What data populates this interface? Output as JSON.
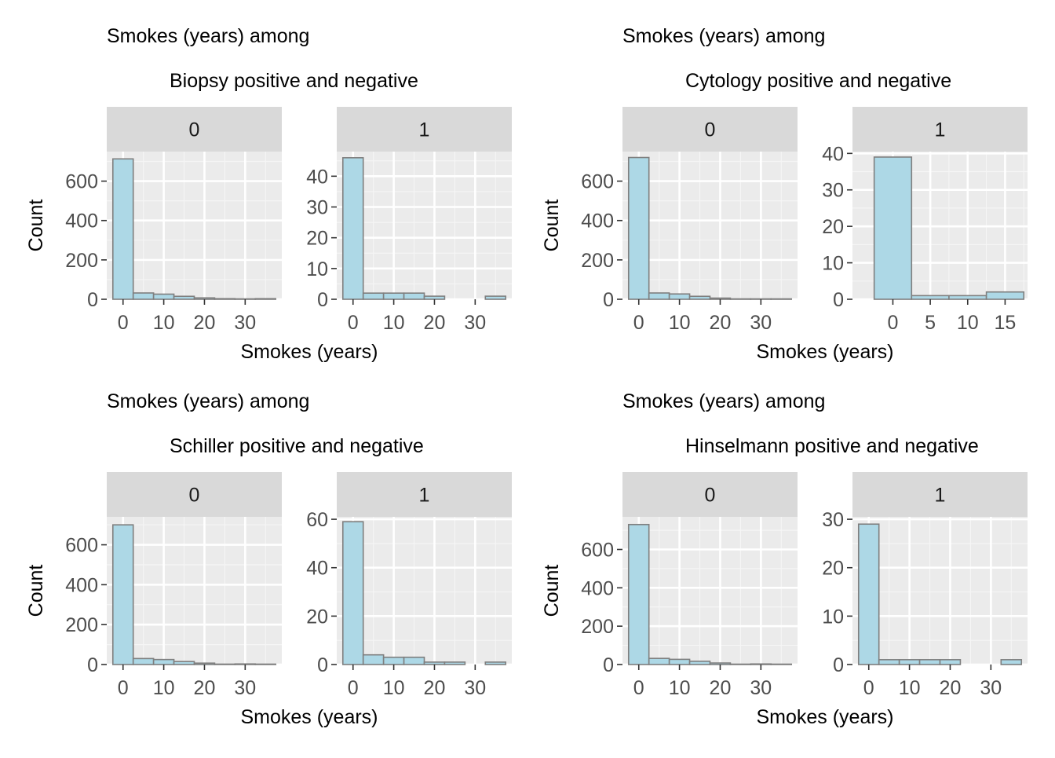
{
  "chart_data": [
    {
      "type": "bar",
      "title": "Smokes (years) among",
      "subtitle": "Biopsy positive and negative",
      "xlabel": "Smokes (years)",
      "ylabel": "Count",
      "bin_width": 5,
      "bin_centers": [
        0,
        5,
        10,
        15,
        20,
        25,
        30,
        35
      ],
      "colors": {
        "fill": "#add8e6",
        "stroke": "#7f7f7f"
      },
      "facets": [
        {
          "label": "0",
          "xlim": [
            -4,
            39
          ],
          "ylim": [
            0,
            750
          ],
          "x_ticks": [
            0,
            10,
            20,
            30
          ],
          "y_ticks": [
            0,
            200,
            400,
            600
          ],
          "x_tick_labels": [
            "0",
            "10",
            "20",
            "30"
          ],
          "y_tick_labels": [
            "0",
            "200",
            "400",
            "600"
          ],
          "values": [
            713,
            32,
            26,
            15,
            7,
            3,
            2,
            3
          ]
        },
        {
          "label": "1",
          "xlim": [
            -4,
            39
          ],
          "ylim": [
            0,
            48
          ],
          "x_ticks": [
            0,
            10,
            20,
            30
          ],
          "y_ticks": [
            0,
            10,
            20,
            30,
            40
          ],
          "x_tick_labels": [
            "0",
            "10",
            "20",
            "30"
          ],
          "y_tick_labels": [
            "0",
            "10",
            "20",
            "30",
            "40"
          ],
          "values": [
            46,
            2,
            2,
            2,
            1,
            0,
            0,
            1
          ]
        }
      ]
    },
    {
      "type": "bar",
      "title": "Smokes (years) among",
      "subtitle": "Cytology positive and negative",
      "xlabel": "Smokes (years)",
      "ylabel": "Count",
      "colors": {
        "fill": "#add8e6",
        "stroke": "#7f7f7f"
      },
      "facets": [
        {
          "label": "0",
          "xlim": [
            -4,
            39
          ],
          "ylim": [
            0,
            750
          ],
          "bin_width": 5,
          "bin_centers": [
            0,
            5,
            10,
            15,
            20,
            25,
            30,
            35
          ],
          "x_ticks": [
            0,
            10,
            20,
            30
          ],
          "y_ticks": [
            0,
            200,
            400,
            600
          ],
          "x_tick_labels": [
            "0",
            "10",
            "20",
            "30"
          ],
          "y_tick_labels": [
            "0",
            "200",
            "400",
            "600"
          ],
          "values": [
            720,
            32,
            27,
            15,
            6,
            2,
            2,
            2
          ]
        },
        {
          "label": "1",
          "xlim": [
            -5.4,
            18
          ],
          "ylim": [
            0,
            40.5
          ],
          "bin_width": 5,
          "bin_centers": [
            0,
            5,
            10,
            15
          ],
          "x_ticks": [
            0,
            5,
            10,
            15
          ],
          "y_ticks": [
            0,
            10,
            20,
            30,
            40
          ],
          "x_tick_labels": [
            "0",
            "5",
            "10",
            "15"
          ],
          "y_tick_labels": [
            "0",
            "10",
            "20",
            "30",
            "40"
          ],
          "values": [
            39,
            1,
            1,
            2
          ]
        }
      ]
    },
    {
      "type": "bar",
      "title": "Smokes (years) among",
      "subtitle": "Schiller positive and negative",
      "xlabel": "Smokes (years)",
      "ylabel": "Count",
      "bin_width": 5,
      "bin_centers": [
        0,
        5,
        10,
        15,
        20,
        25,
        30,
        35
      ],
      "colors": {
        "fill": "#add8e6",
        "stroke": "#7f7f7f"
      },
      "facets": [
        {
          "label": "0",
          "xlim": [
            -4,
            39
          ],
          "ylim": [
            0,
            740
          ],
          "x_ticks": [
            0,
            10,
            20,
            30
          ],
          "y_ticks": [
            0,
            200,
            400,
            600
          ],
          "x_tick_labels": [
            "0",
            "10",
            "20",
            "30"
          ],
          "y_tick_labels": [
            "0",
            "200",
            "400",
            "600"
          ],
          "values": [
            700,
            30,
            25,
            15,
            7,
            2,
            3,
            2
          ]
        },
        {
          "label": "1",
          "xlim": [
            -4,
            39
          ],
          "ylim": [
            0,
            61
          ],
          "x_ticks": [
            0,
            10,
            20,
            30
          ],
          "y_ticks": [
            0,
            20,
            40,
            60
          ],
          "x_tick_labels": [
            "0",
            "10",
            "20",
            "30"
          ],
          "y_tick_labels": [
            "0",
            "20",
            "40",
            "60"
          ],
          "values": [
            59,
            4,
            3,
            3,
            1,
            1,
            0,
            1
          ]
        }
      ]
    },
    {
      "type": "bar",
      "title": "Smokes (years) among",
      "subtitle": "Hinselmann positive and negative",
      "xlabel": "Smokes (years)",
      "ylabel": "Count",
      "bin_width": 5,
      "bin_centers": [
        0,
        5,
        10,
        15,
        20,
        25,
        30,
        35
      ],
      "colors": {
        "fill": "#add8e6",
        "stroke": "#7f7f7f"
      },
      "facets": [
        {
          "label": "0",
          "xlim": [
            -4,
            39
          ],
          "ylim": [
            0,
            770
          ],
          "x_ticks": [
            0,
            10,
            20,
            30
          ],
          "y_ticks": [
            0,
            200,
            400,
            600
          ],
          "x_tick_labels": [
            "0",
            "10",
            "20",
            "30"
          ],
          "y_tick_labels": [
            "0",
            "200",
            "400",
            "600"
          ],
          "values": [
            730,
            32,
            27,
            17,
            8,
            2,
            3,
            2
          ]
        },
        {
          "label": "1",
          "xlim": [
            -4,
            39
          ],
          "ylim": [
            0,
            30.5
          ],
          "x_ticks": [
            0,
            10,
            20,
            30
          ],
          "y_ticks": [
            0,
            10,
            20,
            30
          ],
          "x_tick_labels": [
            "0",
            "10",
            "20",
            "30"
          ],
          "y_tick_labels": [
            "0",
            "10",
            "20",
            "30"
          ],
          "values": [
            29,
            1,
            1,
            1,
            1,
            0,
            0,
            1
          ]
        }
      ]
    }
  ]
}
